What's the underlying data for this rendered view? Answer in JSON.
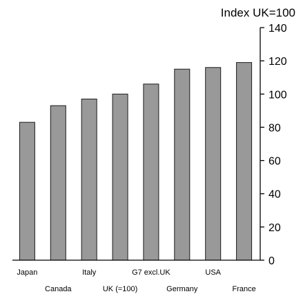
{
  "chart_data": {
    "type": "bar",
    "ylabel": "Index UK=100",
    "categories": [
      "Japan",
      "Canada",
      "Italy",
      "UK (=100)",
      "G7 excl.UK",
      "Germany",
      "USA",
      "France"
    ],
    "values": [
      83,
      93,
      97,
      100,
      106,
      115,
      116,
      119
    ],
    "ylim": [
      0,
      140
    ],
    "yticks": [
      0,
      20,
      40,
      60,
      80,
      100,
      120,
      140
    ],
    "y_axis_position": "right",
    "grid": false,
    "legend": "none",
    "colors": {
      "bar_fill": "#999999",
      "bar_stroke": "#1a1a1a",
      "axis": "#000000",
      "text": "#000000"
    }
  }
}
